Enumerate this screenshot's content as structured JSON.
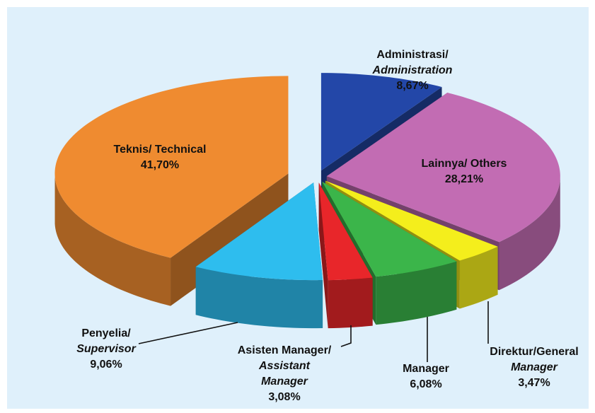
{
  "chart_data": {
    "type": "pie",
    "categories": [
      [
        "Administrasi/",
        "Administration"
      ],
      [
        "Lainnya/ Others"
      ],
      [
        "Direktur/General",
        "Manager"
      ],
      [
        "Manager"
      ],
      [
        "Asisten Manager/",
        "Assistant",
        "Manager"
      ],
      [
        "Penyelia/",
        "Supervisor"
      ],
      [
        "Teknis/ Technical"
      ]
    ],
    "values": [
      8.67,
      28.21,
      3.47,
      6.08,
      3.08,
      9.06,
      41.7
    ],
    "value_labels": [
      "8,67%",
      "28,21%",
      "3,47%",
      "6,08%",
      "3,08%",
      "9,06%",
      "41,70%"
    ],
    "colors": [
      "#2347a8",
      "#c26cb3",
      "#f4ee1c",
      "#3bb54a",
      "#e8262a",
      "#2ebdee",
      "#ef8b30"
    ]
  }
}
